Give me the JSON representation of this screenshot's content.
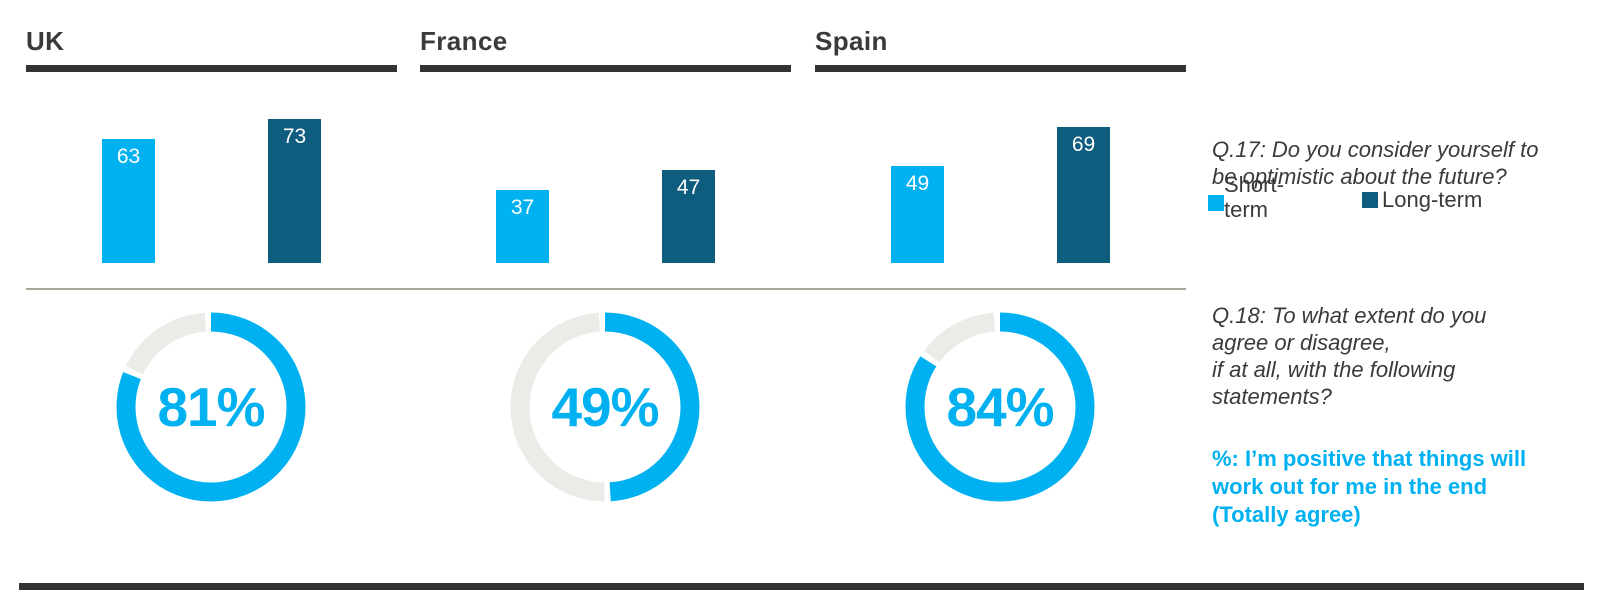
{
  "colors": {
    "light_blue": "#00b1f1",
    "dark_blue": "#0e5c7e",
    "charcoal": "#3a3a39",
    "rule_dark": "#323232",
    "divider": "#a8a79a",
    "donut_track": "#ebebe7"
  },
  "chart_data": [
    {
      "type": "bar",
      "title": "Q.17: Do you consider yourself to be optimistic about the future?",
      "categories": [
        "UK",
        "France",
        "Spain"
      ],
      "series": [
        {
          "name": "Short-term",
          "values": [
            63,
            37,
            49
          ],
          "color": "#00b1f1"
        },
        {
          "name": "Long-term",
          "values": [
            73,
            47,
            69
          ],
          "color": "#0e5c7e"
        }
      ],
      "ylim": [
        0,
        100
      ],
      "value_labels": true,
      "grid": false,
      "legend_position": "right"
    },
    {
      "type": "donut",
      "title": "%: I’m positive that things will work out for me in the end (Totally agree)",
      "categories": [
        "UK",
        "France",
        "Spain"
      ],
      "values": [
        81,
        49,
        84
      ],
      "labels": [
        "81%",
        "49%",
        "84%"
      ],
      "arc_start": "top",
      "direction": "clockwise"
    }
  ],
  "right_column": {
    "q17": "Q.17: Do you consider yourself to\nbe optimistic about the future?",
    "legend": {
      "short_label": "Short-\nterm",
      "long_label": "Long-term"
    },
    "q18": "Q.18: To what extent do you\nagree or disagree,\nif at all, with the following\nstatements?",
    "statement": "%: I’m positive that things will\nwork out for me in the end\n(Totally agree)"
  }
}
